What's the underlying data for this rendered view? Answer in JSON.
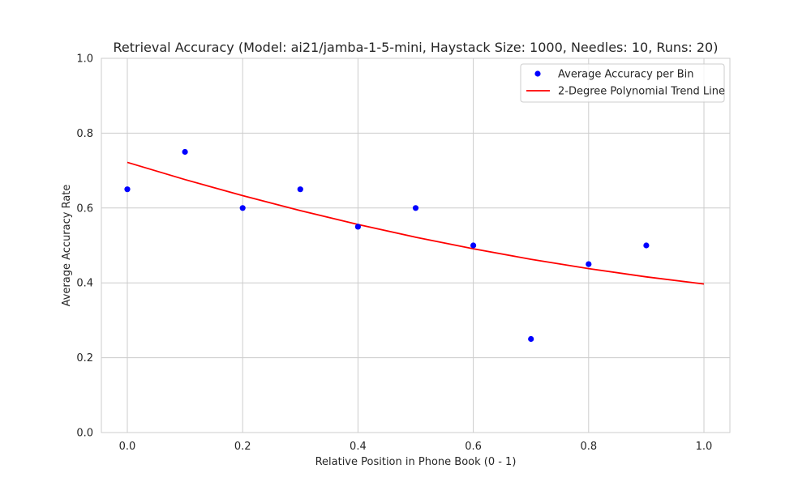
{
  "chart_data": {
    "type": "scatter",
    "title": "Retrieval Accuracy (Model: ai21/jamba-1-5-mini, Haystack Size: 1000, Needles: 10, Runs: 20)",
    "xlabel": "Relative Position in Phone Book (0 - 1)",
    "ylabel": "Average Accuracy Rate",
    "xlim": [
      -0.045,
      1.045
    ],
    "ylim": [
      0.0,
      1.0
    ],
    "xticks": [
      "0.0",
      "0.2",
      "0.4",
      "0.6",
      "0.8",
      "1.0"
    ],
    "yticks": [
      "0.0",
      "0.2",
      "0.4",
      "0.6",
      "0.8",
      "1.0"
    ],
    "grid": true,
    "legend_position": "top-right",
    "series": [
      {
        "name": "Average Accuracy per Bin",
        "kind": "scatter",
        "color": "#0000ff",
        "x": [
          0.0,
          0.1,
          0.2,
          0.3,
          0.4,
          0.5,
          0.6,
          0.7,
          0.8,
          0.9
        ],
        "y": [
          0.65,
          0.75,
          0.6,
          0.65,
          0.55,
          0.6,
          0.5,
          0.25,
          0.45,
          0.5
        ]
      },
      {
        "name": "2-Degree Polynomial Trend Line",
        "kind": "line",
        "color": "#ff0000",
        "x": [
          0.0,
          0.1,
          0.2,
          0.3,
          0.4,
          0.5,
          0.6,
          0.7,
          0.8,
          0.9,
          1.0
        ],
        "y": [
          0.722,
          0.676,
          0.633,
          0.593,
          0.556,
          0.522,
          0.491,
          0.463,
          0.438,
          0.416,
          0.397
        ]
      }
    ]
  }
}
